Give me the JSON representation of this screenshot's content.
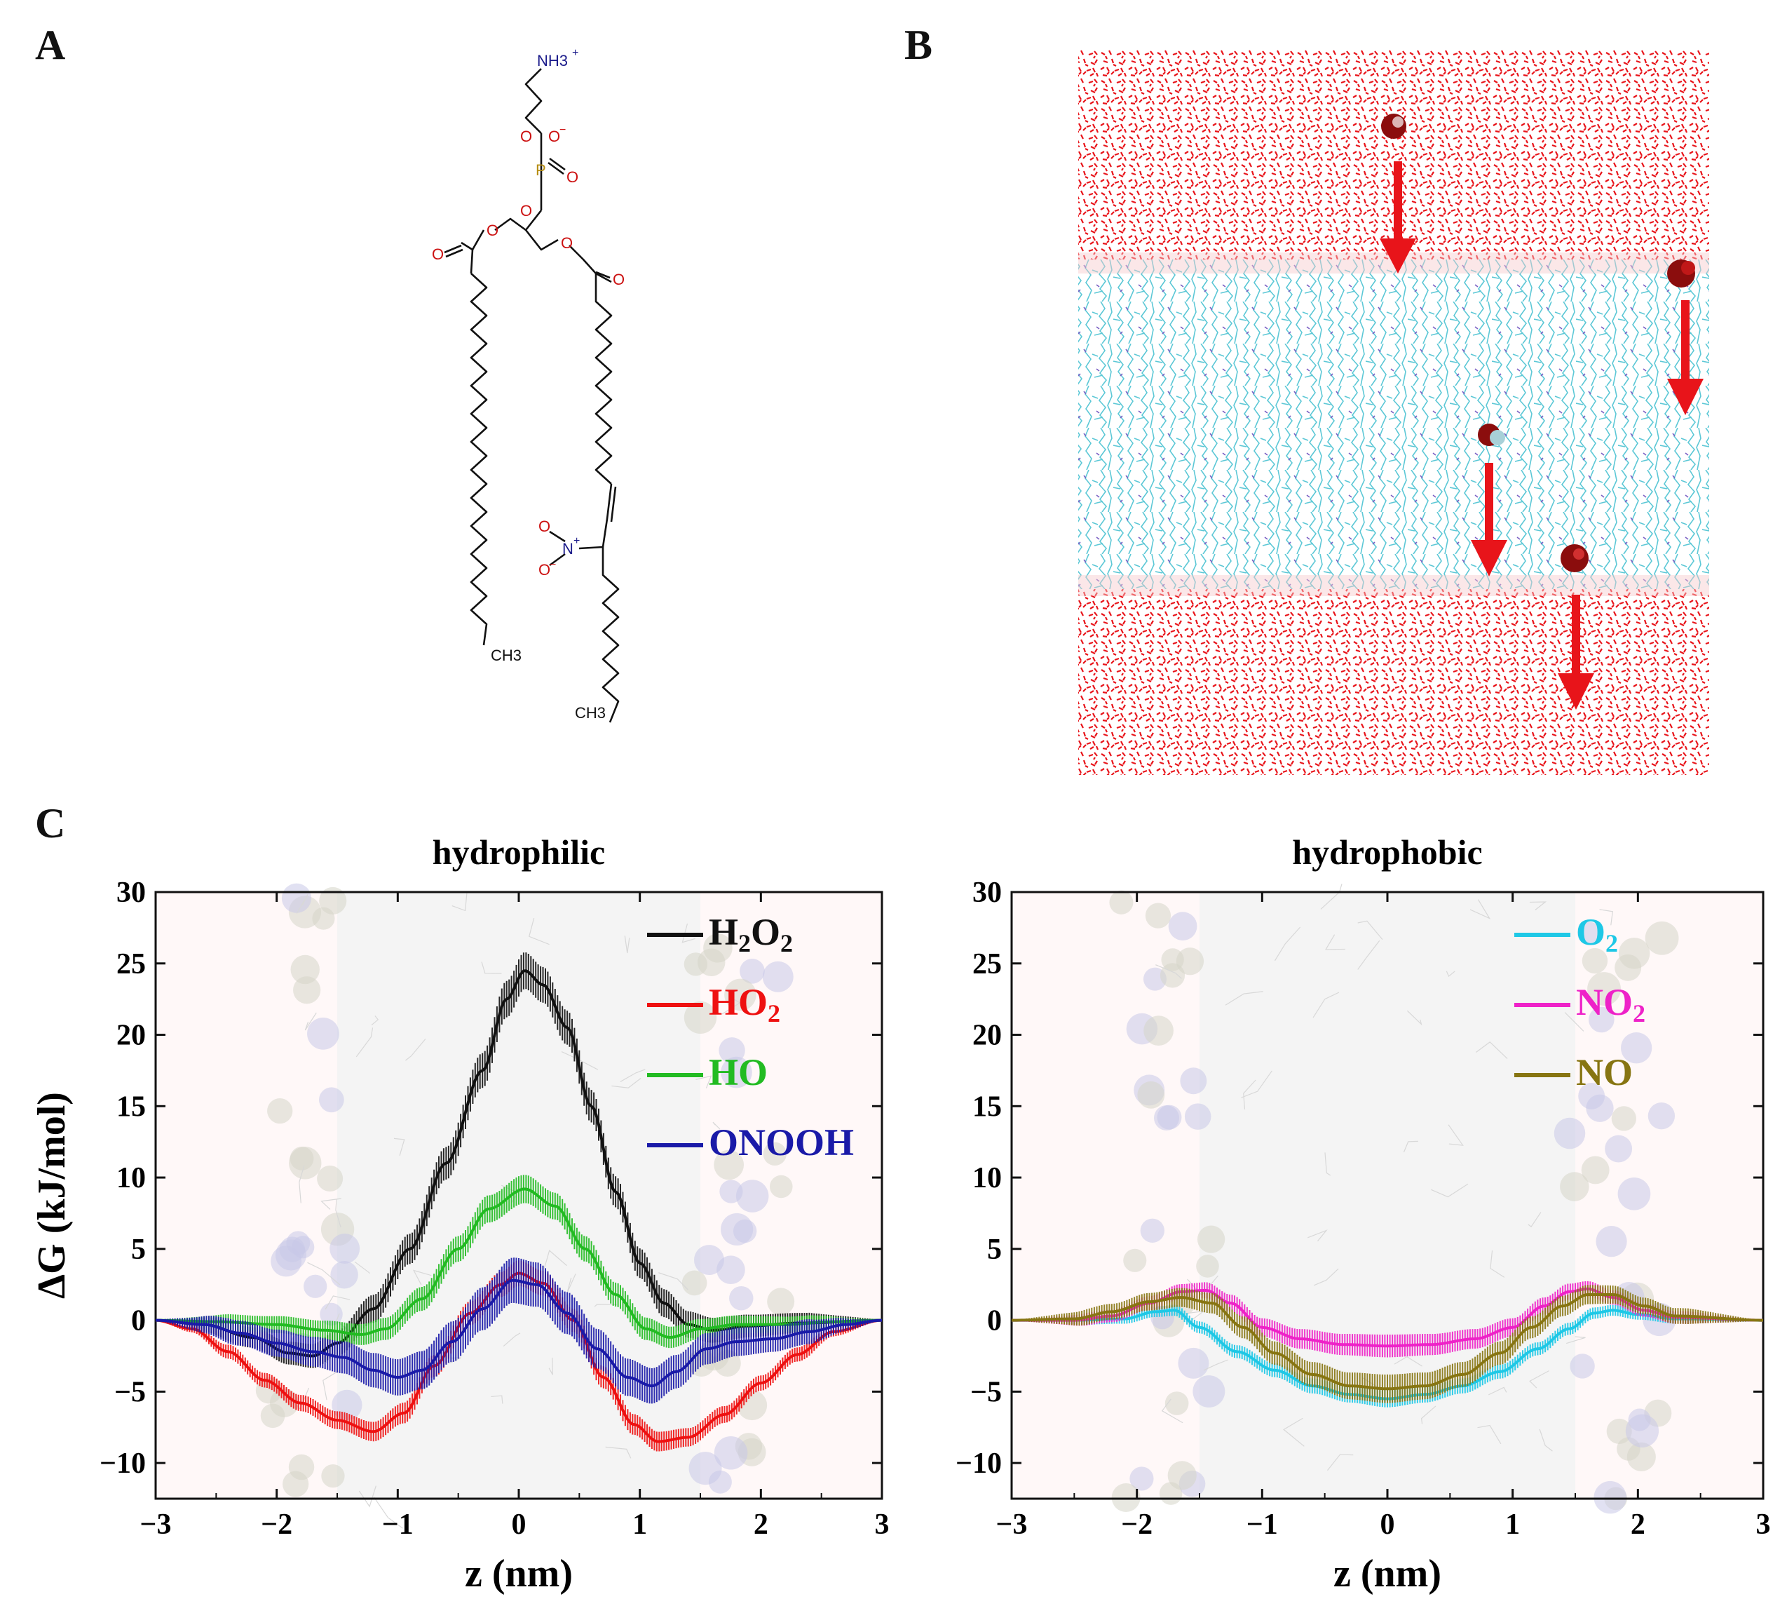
{
  "figure": {
    "panel_labels": {
      "a": "A",
      "b": "B",
      "c": "C"
    }
  },
  "panelA": {
    "atoms": {
      "nh3": "NH3",
      "nh3_charge": "+",
      "o_top": "O",
      "o_minus": "O",
      "o_minus_charge": "−",
      "p": "P",
      "o_double": "O",
      "o_bottom": "O",
      "o_ester1": "O",
      "o_carbonyl1": "O",
      "o_ester2": "O",
      "o_carbonyl2": "O",
      "n_nitro": "N",
      "n_charge": "+",
      "o_nitro_top": "O",
      "o_nitro_bottom": "O",
      "o_nitro_charge": "−",
      "ch3_left": "CH3",
      "ch3_right": "CH3"
    }
  },
  "panelB": {
    "description_colors": {
      "water": "#e8141a",
      "lipid": "#4fc4d4",
      "arrow": "#e8141a"
    }
  },
  "chart_data": [
    {
      "type": "line",
      "title": "hydrophilic",
      "xlabel": "z (nm)",
      "ylabel": "ΔG (kJ/mol)",
      "xlim": [
        -3,
        3
      ],
      "ylim": [
        -12.5,
        30
      ],
      "xticks": [
        -3,
        -2,
        -1,
        0,
        1,
        2,
        3
      ],
      "yticks": [
        -10,
        -5,
        0,
        5,
        10,
        15,
        20,
        25,
        30
      ],
      "legend_position": "top-right",
      "series": [
        {
          "name": "H2O2",
          "label_main": "H",
          "label_sub1": "2",
          "label_mid": "O",
          "label_sub2": "2",
          "color": "#111111",
          "errorbar": 1.3,
          "points": [
            [
              -3,
              0
            ],
            [
              -2.6,
              -0.3
            ],
            [
              -2.2,
              -1.2
            ],
            [
              -1.9,
              -2.3
            ],
            [
              -1.7,
              -2.5
            ],
            [
              -1.5,
              -1.6
            ],
            [
              -1.2,
              0.8
            ],
            [
              -0.9,
              5.0
            ],
            [
              -0.6,
              11.0
            ],
            [
              -0.3,
              17.5
            ],
            [
              -0.1,
              22.5
            ],
            [
              0.05,
              24.5
            ],
            [
              0.2,
              23.5
            ],
            [
              0.4,
              20.5
            ],
            [
              0.6,
              15.0
            ],
            [
              0.8,
              9.0
            ],
            [
              1.0,
              4.0
            ],
            [
              1.2,
              1.2
            ],
            [
              1.4,
              -0.3
            ],
            [
              1.6,
              -0.7
            ],
            [
              1.9,
              -0.4
            ],
            [
              2.3,
              -0.2
            ],
            [
              3,
              0
            ]
          ]
        },
        {
          "name": "HO2",
          "label_main": "HO",
          "label_sub1": "2",
          "label_mid": "",
          "label_sub2": "",
          "color": "#ee1111",
          "errorbar": 0.9,
          "points": [
            [
              -3,
              0
            ],
            [
              -2.7,
              -0.6
            ],
            [
              -2.4,
              -2.2
            ],
            [
              -2.1,
              -4.2
            ],
            [
              -1.8,
              -5.8
            ],
            [
              -1.5,
              -7.0
            ],
            [
              -1.2,
              -7.8
            ],
            [
              -0.95,
              -6.5
            ],
            [
              -0.7,
              -3.2
            ],
            [
              -0.4,
              0.5
            ],
            [
              -0.15,
              2.5
            ],
            [
              0.0,
              3.3
            ],
            [
              0.2,
              2.6
            ],
            [
              0.45,
              0.0
            ],
            [
              0.7,
              -4.0
            ],
            [
              0.95,
              -7.3
            ],
            [
              1.15,
              -8.5
            ],
            [
              1.4,
              -8.2
            ],
            [
              1.7,
              -6.6
            ],
            [
              2.0,
              -4.4
            ],
            [
              2.3,
              -2.4
            ],
            [
              2.6,
              -0.8
            ],
            [
              3,
              0
            ]
          ]
        },
        {
          "name": "HO",
          "label_main": "HO",
          "label_sub1": "",
          "label_mid": "",
          "label_sub2": "",
          "color": "#22bb22",
          "errorbar": 1.0,
          "points": [
            [
              -3,
              0
            ],
            [
              -2.5,
              -0.1
            ],
            [
              -2.0,
              -0.3
            ],
            [
              -1.6,
              -0.7
            ],
            [
              -1.3,
              -1.0
            ],
            [
              -1.1,
              -0.6
            ],
            [
              -0.8,
              1.5
            ],
            [
              -0.5,
              5.0
            ],
            [
              -0.25,
              7.8
            ],
            [
              0.05,
              9.2
            ],
            [
              0.3,
              8.0
            ],
            [
              0.55,
              5.0
            ],
            [
              0.8,
              1.8
            ],
            [
              1.05,
              -0.6
            ],
            [
              1.25,
              -1.2
            ],
            [
              1.5,
              -0.6
            ],
            [
              1.8,
              -0.3
            ],
            [
              2.2,
              -0.3
            ],
            [
              2.6,
              -0.1
            ],
            [
              3,
              0
            ]
          ]
        },
        {
          "name": "ONOOH",
          "label_main": "ONOOH",
          "label_sub1": "",
          "label_mid": "",
          "label_sub2": "",
          "color": "#1a1aa8",
          "errorbar": 1.6,
          "points": [
            [
              -3,
              0
            ],
            [
              -2.6,
              -0.3
            ],
            [
              -2.3,
              -0.9
            ],
            [
              -2.0,
              -1.6
            ],
            [
              -1.7,
              -2.2
            ],
            [
              -1.45,
              -2.6
            ],
            [
              -1.2,
              -3.5
            ],
            [
              -1.0,
              -4.0
            ],
            [
              -0.8,
              -3.5
            ],
            [
              -0.55,
              -1.5
            ],
            [
              -0.3,
              0.8
            ],
            [
              -0.05,
              2.8
            ],
            [
              0.15,
              2.5
            ],
            [
              0.4,
              0.5
            ],
            [
              0.65,
              -2.0
            ],
            [
              0.9,
              -4.0
            ],
            [
              1.1,
              -4.6
            ],
            [
              1.3,
              -3.6
            ],
            [
              1.55,
              -2.0
            ],
            [
              1.8,
              -1.5
            ],
            [
              2.1,
              -1.3
            ],
            [
              2.4,
              -0.8
            ],
            [
              2.7,
              -0.3
            ],
            [
              3,
              0
            ]
          ]
        }
      ]
    },
    {
      "type": "line",
      "title": "hydrophobic",
      "xlabel": "z (nm)",
      "ylabel": "",
      "xlim": [
        -3,
        3
      ],
      "ylim": [
        -12.5,
        30
      ],
      "xticks": [
        -3,
        -2,
        -1,
        0,
        1,
        2,
        3
      ],
      "yticks": [
        -10,
        -5,
        0,
        5,
        10,
        15,
        20,
        25,
        30
      ],
      "legend_position": "top-right",
      "series": [
        {
          "name": "O2",
          "label_main": "O",
          "label_sub1": "2",
          "label_mid": "",
          "label_sub2": "",
          "color": "#1ec8e6",
          "errorbar": 0.6,
          "points": [
            [
              -3,
              0
            ],
            [
              -2.5,
              0
            ],
            [
              -2.1,
              0.1
            ],
            [
              -1.85,
              0.6
            ],
            [
              -1.7,
              0.7
            ],
            [
              -1.5,
              -0.5
            ],
            [
              -1.2,
              -2.2
            ],
            [
              -0.9,
              -3.5
            ],
            [
              -0.6,
              -4.6
            ],
            [
              -0.3,
              -5.2
            ],
            [
              0.0,
              -5.5
            ],
            [
              0.3,
              -5.2
            ],
            [
              0.6,
              -4.6
            ],
            [
              0.9,
              -3.6
            ],
            [
              1.2,
              -2.0
            ],
            [
              1.45,
              -0.6
            ],
            [
              1.65,
              0.5
            ],
            [
              1.8,
              0.7
            ],
            [
              2.0,
              0.4
            ],
            [
              2.3,
              0.1
            ],
            [
              3,
              0
            ]
          ]
        },
        {
          "name": "NO2",
          "label_main": "NO",
          "label_sub1": "2",
          "label_mid": "",
          "label_sub2": "",
          "color": "#ee22c8",
          "errorbar": 0.8,
          "points": [
            [
              -3,
              0
            ],
            [
              -2.5,
              0
            ],
            [
              -2.2,
              0.3
            ],
            [
              -1.9,
              1.2
            ],
            [
              -1.65,
              2.0
            ],
            [
              -1.45,
              2.1
            ],
            [
              -1.25,
              1.2
            ],
            [
              -1.0,
              -0.5
            ],
            [
              -0.7,
              -1.3
            ],
            [
              -0.35,
              -1.7
            ],
            [
              0.0,
              -1.8
            ],
            [
              0.35,
              -1.7
            ],
            [
              0.7,
              -1.3
            ],
            [
              1.0,
              -0.5
            ],
            [
              1.25,
              1.0
            ],
            [
              1.45,
              2.0
            ],
            [
              1.6,
              2.2
            ],
            [
              1.8,
              1.6
            ],
            [
              2.05,
              0.7
            ],
            [
              2.3,
              0.2
            ],
            [
              3,
              0
            ]
          ]
        },
        {
          "name": "NO",
          "label_main": "NO",
          "label_sub1": "",
          "label_mid": "",
          "label_sub2": "",
          "color": "#877512",
          "errorbar": 1.0,
          "points": [
            [
              -3,
              0
            ],
            [
              -2.5,
              0.1
            ],
            [
              -2.2,
              0.6
            ],
            [
              -1.9,
              1.3
            ],
            [
              -1.65,
              1.6
            ],
            [
              -1.4,
              1.2
            ],
            [
              -1.15,
              -0.5
            ],
            [
              -0.9,
              -2.3
            ],
            [
              -0.6,
              -3.8
            ],
            [
              -0.3,
              -4.6
            ],
            [
              0.0,
              -4.8
            ],
            [
              0.3,
              -4.6
            ],
            [
              0.6,
              -3.8
            ],
            [
              0.9,
              -2.3
            ],
            [
              1.15,
              -0.5
            ],
            [
              1.4,
              1.0
            ],
            [
              1.6,
              1.8
            ],
            [
              1.8,
              1.8
            ],
            [
              2.05,
              1.0
            ],
            [
              2.3,
              0.3
            ],
            [
              3,
              0
            ]
          ]
        }
      ]
    }
  ]
}
